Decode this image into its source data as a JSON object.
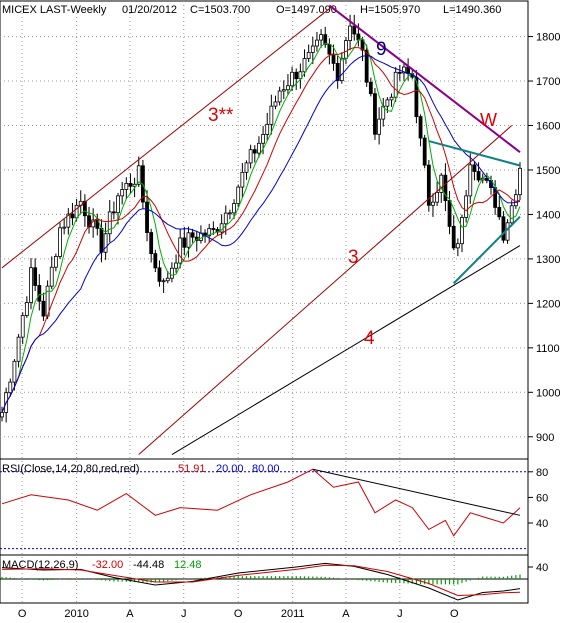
{
  "header": {
    "symbol": "MICEX LAST-Weekly",
    "date": "01/20/2012",
    "close": "C=1503.700",
    "open": "O=1497.090",
    "high": "H=1505.970",
    "low": "L=1490.360"
  },
  "colors": {
    "frame": "#000000",
    "grid": "#9a9a9a",
    "candle": "#000000",
    "ma_fast": "#00b000",
    "ma_mid": "#d00000",
    "ma_slow": "#0000d0",
    "channel": "#a00000",
    "trend4": "#000000",
    "resistance9": "#8b008b",
    "wedge": "#108080",
    "label_red": "#e00000",
    "label_blue": "#000080",
    "rsi_line": "#d00000",
    "rsi_trend": "#000000",
    "macd_line": "#000000",
    "macd_signal": "#d00000",
    "macd_hist": "#00a000"
  },
  "chart_data": [
    {
      "type": "candlestick",
      "panel": "price",
      "timeframe": "Weekly",
      "y_range": [
        850,
        1880
      ],
      "y_ticks": [
        "900",
        "1000",
        "1100",
        "1200",
        "1300",
        "1400",
        "1500",
        "1600",
        "1700",
        "1800"
      ],
      "x_range": [
        "2009-08-28",
        "2012-01-20"
      ],
      "x_ticks": [
        {
          "date": "2009-10-01",
          "label": "O"
        },
        {
          "date": "2010-01-01",
          "label": "2010"
        },
        {
          "date": "2010-04-01",
          "label": "A"
        },
        {
          "date": "2010-07-01",
          "label": "J"
        },
        {
          "date": "2010-10-01",
          "label": "O"
        },
        {
          "date": "2011-01-01",
          "label": "2011"
        },
        {
          "date": "2011-04-01",
          "label": "A"
        },
        {
          "date": "2011-07-01",
          "label": "J"
        },
        {
          "date": "2011-10-01",
          "label": "O"
        }
      ],
      "close_path": [
        [
          "2009-08-28",
          955
        ],
        [
          "2009-09-18",
          1080
        ],
        [
          "2009-10-16",
          1265
        ],
        [
          "2009-11-06",
          1180
        ],
        [
          "2009-12-04",
          1370
        ],
        [
          "2010-01-08",
          1430
        ],
        [
          "2010-01-29",
          1370
        ],
        [
          "2010-02-12",
          1330
        ],
        [
          "2010-03-12",
          1445
        ],
        [
          "2010-04-16",
          1490
        ],
        [
          "2010-05-07",
          1310
        ],
        [
          "2010-05-28",
          1240
        ],
        [
          "2010-06-25",
          1330
        ],
        [
          "2010-07-16",
          1350
        ],
        [
          "2010-08-20",
          1360
        ],
        [
          "2010-09-17",
          1420
        ],
        [
          "2010-10-15",
          1510
        ],
        [
          "2010-11-12",
          1580
        ],
        [
          "2010-12-10",
          1680
        ],
        [
          "2011-01-07",
          1720
        ],
        [
          "2011-02-04",
          1760
        ],
        [
          "2011-02-18",
          1790
        ],
        [
          "2011-03-18",
          1720
        ],
        [
          "2011-04-08",
          1835
        ],
        [
          "2011-04-29",
          1760
        ],
        [
          "2011-05-20",
          1600
        ],
        [
          "2011-06-10",
          1660
        ],
        [
          "2011-07-01",
          1720
        ],
        [
          "2011-07-22",
          1710
        ],
        [
          "2011-08-05",
          1560
        ],
        [
          "2011-08-19",
          1430
        ],
        [
          "2011-09-09",
          1480
        ],
        [
          "2011-09-30",
          1310
        ],
        [
          "2011-10-14",
          1380
        ],
        [
          "2011-10-28",
          1530
        ],
        [
          "2011-11-18",
          1480
        ],
        [
          "2011-12-09",
          1430
        ],
        [
          "2011-12-23",
          1360
        ],
        [
          "2012-01-06",
          1420
        ],
        [
          "2012-01-20",
          1503.7
        ]
      ],
      "annotations": [
        {
          "label": "3**",
          "date": "2010-07-01",
          "value": 1670
        },
        {
          "label": "3",
          "date": "2011-01-20",
          "value": 1310
        },
        {
          "label": "4",
          "date": "2011-01-20",
          "value": 1055
        },
        {
          "label": "9",
          "date": "2011-04-30",
          "value": 1820
        },
        {
          "label": "W",
          "date": "2011-11-25",
          "value": 1615
        }
      ]
    },
    {
      "type": "line",
      "panel": "rsi",
      "title": "RSI(Close,14,20,80,red,red)",
      "values_text": {
        "rsi": "51.91",
        "low": "20.00",
        "high": "80.00"
      },
      "y_ticks": [
        "40",
        "60",
        "80"
      ],
      "y_range": [
        15,
        90
      ],
      "levels": [
        20,
        80
      ],
      "series": [
        {
          "name": "RSI",
          "points": [
            [
              "2009-08-28",
              55
            ],
            [
              "2009-10-16",
              62
            ],
            [
              "2009-12-18",
              58
            ],
            [
              "2010-02-05",
              50
            ],
            [
              "2010-03-26",
              63
            ],
            [
              "2010-05-14",
              46
            ],
            [
              "2010-06-25",
              52
            ],
            [
              "2010-08-27",
              50
            ],
            [
              "2010-10-22",
              62
            ],
            [
              "2010-12-24",
              72
            ],
            [
              "2011-02-04",
              82
            ],
            [
              "2011-03-11",
              68
            ],
            [
              "2011-04-22",
              72
            ],
            [
              "2011-05-20",
              48
            ],
            [
              "2011-06-24",
              58
            ],
            [
              "2011-07-22",
              52
            ],
            [
              "2011-08-19",
              35
            ],
            [
              "2011-09-16",
              42
            ],
            [
              "2011-09-30",
              30
            ],
            [
              "2011-10-28",
              48
            ],
            [
              "2011-11-18",
              45
            ],
            [
              "2011-12-23",
              40
            ],
            [
              "2012-01-20",
              51.91
            ]
          ]
        }
      ]
    },
    {
      "type": "line",
      "panel": "macd",
      "title": "MACD(12,26,9)",
      "values_text": {
        "macd": "-32.00",
        "signal": "-44.48",
        "hist": "12.48"
      },
      "y_ticks": [
        "40"
      ],
      "y_range": [
        -80,
        80
      ],
      "series": [
        {
          "name": "MACD",
          "points": [
            [
              "2009-08-28",
              38
            ],
            [
              "2009-11-06",
              30
            ],
            [
              "2010-01-08",
              32
            ],
            [
              "2010-03-05",
              5
            ],
            [
              "2010-05-14",
              -20
            ],
            [
              "2010-07-16",
              -8
            ],
            [
              "2010-10-01",
              20
            ],
            [
              "2011-01-07",
              40
            ],
            [
              "2011-02-25",
              52
            ],
            [
              "2011-04-15",
              42
            ],
            [
              "2011-06-10",
              15
            ],
            [
              "2011-08-19",
              -30
            ],
            [
              "2011-10-07",
              -70
            ],
            [
              "2011-11-18",
              -45
            ],
            [
              "2011-12-23",
              -40
            ],
            [
              "2012-01-20",
              -32
            ]
          ]
        },
        {
          "name": "Signal",
          "points": [
            [
              "2009-08-28",
              32
            ],
            [
              "2009-11-06",
              34
            ],
            [
              "2010-01-08",
              30
            ],
            [
              "2010-03-05",
              12
            ],
            [
              "2010-05-14",
              -10
            ],
            [
              "2010-07-16",
              -10
            ],
            [
              "2010-10-01",
              12
            ],
            [
              "2011-01-07",
              32
            ],
            [
              "2011-02-25",
              46
            ],
            [
              "2011-04-15",
              44
            ],
            [
              "2011-06-10",
              25
            ],
            [
              "2011-08-19",
              -15
            ],
            [
              "2011-10-07",
              -55
            ],
            [
              "2011-11-18",
              -52
            ],
            [
              "2011-12-23",
              -46
            ],
            [
              "2012-01-20",
              -44.48
            ]
          ]
        }
      ]
    }
  ]
}
